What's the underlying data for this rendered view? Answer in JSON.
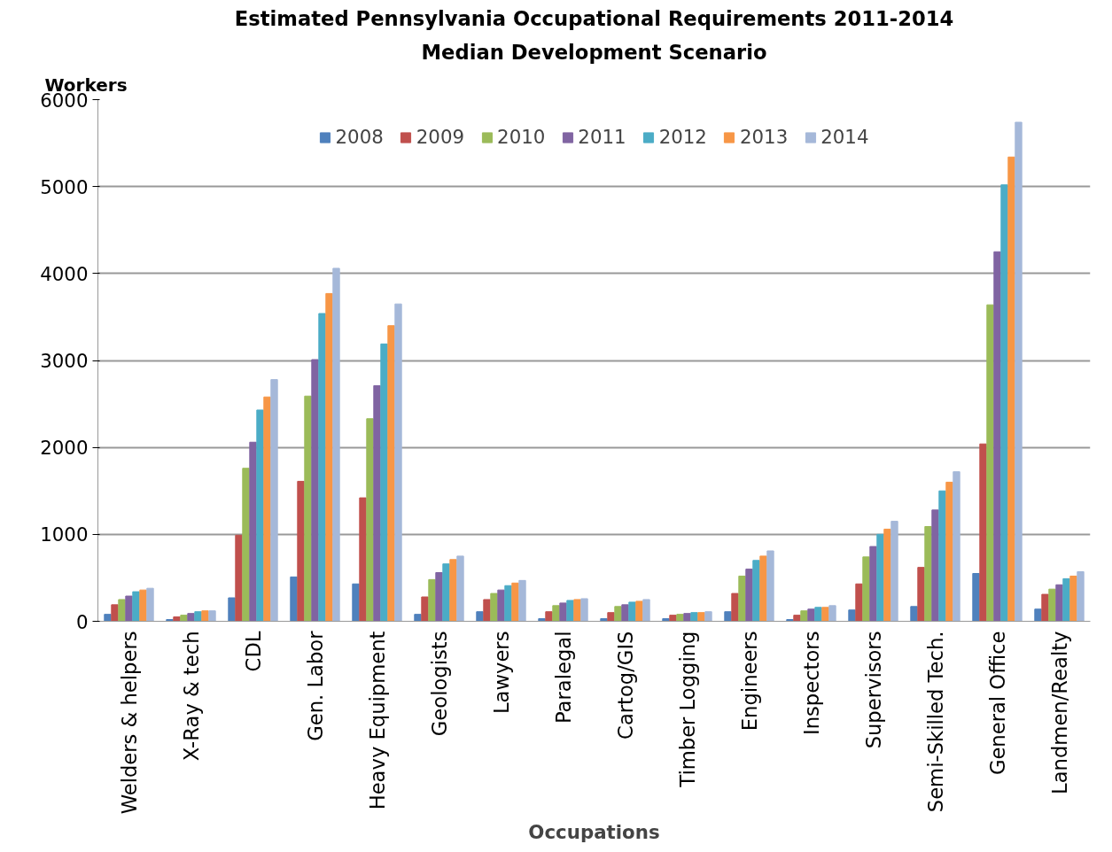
{
  "chart_data": {
    "type": "bar",
    "title": "Estimated Pennsylvania Occupational Requirements 2011-2014",
    "subtitle": "Median Development Scenario",
    "xlabel": "Occupations",
    "ylabel": "Workers",
    "categories": [
      "Welders & helpers",
      "X-Ray & tech",
      "CDL",
      "Gen. Labor",
      "Heavy Equipment",
      "Geologists",
      "Lawyers",
      "Paralegal",
      "Cartog/GIS",
      "Timber Logging",
      "Engineers",
      "Inspectors",
      "Supervisors",
      "Semi-Skilled Tech.",
      "General Office",
      "Landmen/Realty"
    ],
    "series": [
      {
        "name": "2008",
        "color": "#4f81bd",
        "values": [
          80,
          20,
          270,
          510,
          430,
          80,
          110,
          30,
          30,
          30,
          110,
          20,
          130,
          170,
          550,
          140
        ]
      },
      {
        "name": "2009",
        "color": "#c0504d",
        "values": [
          190,
          50,
          990,
          1610,
          1420,
          280,
          250,
          110,
          100,
          70,
          320,
          70,
          430,
          620,
          2040,
          310
        ]
      },
      {
        "name": "2010",
        "color": "#9bbb59",
        "values": [
          250,
          70,
          1760,
          2590,
          2330,
          480,
          320,
          180,
          170,
          80,
          520,
          120,
          740,
          1090,
          3640,
          370
        ]
      },
      {
        "name": "2011",
        "color": "#8064a2",
        "values": [
          290,
          90,
          2060,
          3010,
          2710,
          560,
          360,
          210,
          190,
          90,
          600,
          140,
          860,
          1280,
          4250,
          420
        ]
      },
      {
        "name": "2012",
        "color": "#4bacc6",
        "values": [
          340,
          110,
          2430,
          3540,
          3190,
          660,
          410,
          240,
          220,
          100,
          700,
          160,
          1000,
          1500,
          5020,
          490
        ]
      },
      {
        "name": "2013",
        "color": "#f79646",
        "values": [
          360,
          120,
          2580,
          3770,
          3400,
          710,
          440,
          250,
          230,
          100,
          750,
          160,
          1060,
          1600,
          5340,
          520
        ]
      },
      {
        "name": "2014",
        "color": "#a5b8d9",
        "values": [
          380,
          120,
          2780,
          4060,
          3650,
          750,
          470,
          260,
          250,
          110,
          810,
          180,
          1150,
          1720,
          5740,
          570
        ]
      }
    ],
    "ylim": [
      0,
      6000
    ],
    "yticks": [
      0,
      1000,
      2000,
      3000,
      4000,
      5000,
      6000
    ],
    "grid": "y",
    "legend": "top"
  }
}
